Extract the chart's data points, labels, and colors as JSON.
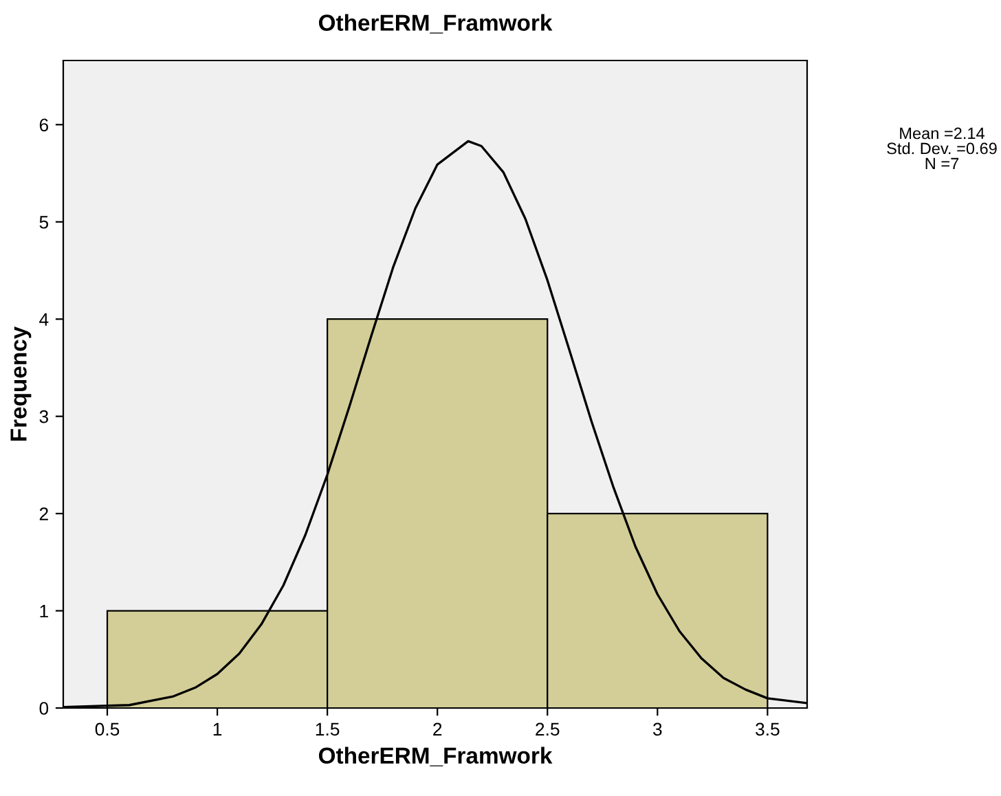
{
  "chart_data": {
    "type": "histogram",
    "title": "OtherERM_Framwork",
    "xlabel": "OtherERM_Framwork",
    "ylabel": "Frequency",
    "bins": [
      0.5,
      1.5,
      2.5,
      3.5
    ],
    "values": [
      1,
      4,
      2
    ],
    "color": "#d3ce97",
    "series": [
      {
        "type": "line",
        "color": "#000000",
        "x": [
          0.3,
          0.6,
          0.8,
          0.9,
          1.0,
          1.1,
          1.2,
          1.3,
          1.4,
          1.5,
          1.6,
          1.7,
          1.8,
          1.9,
          2.0,
          2.14,
          2.2,
          2.3,
          2.4,
          2.5,
          2.6,
          2.7,
          2.8,
          2.9,
          3.0,
          3.1,
          3.2,
          3.3,
          3.4,
          3.5,
          3.68
        ],
        "values": [
          0.01,
          0.03,
          0.12,
          0.21,
          0.35,
          0.56,
          0.86,
          1.26,
          1.78,
          2.4,
          3.1,
          3.83,
          4.54,
          5.14,
          5.59,
          5.83,
          5.78,
          5.51,
          5.03,
          4.4,
          3.68,
          2.95,
          2.27,
          1.66,
          1.17,
          0.79,
          0.51,
          0.31,
          0.19,
          0.1,
          0.05
        ]
      }
    ],
    "xlim": [
      0.3,
      3.68
    ],
    "ylim": [
      0,
      6.66
    ],
    "xticks": [
      0.5,
      1,
      1.5,
      2,
      2.5,
      3,
      3.5
    ],
    "yticks": [
      0,
      1,
      2,
      3,
      4,
      5,
      6
    ],
    "grid": false,
    "marker": "none",
    "line_style": "solid",
    "annotations": [
      "Mean =2.14",
      "Std. Dev. =0.69",
      "N =7"
    ]
  }
}
